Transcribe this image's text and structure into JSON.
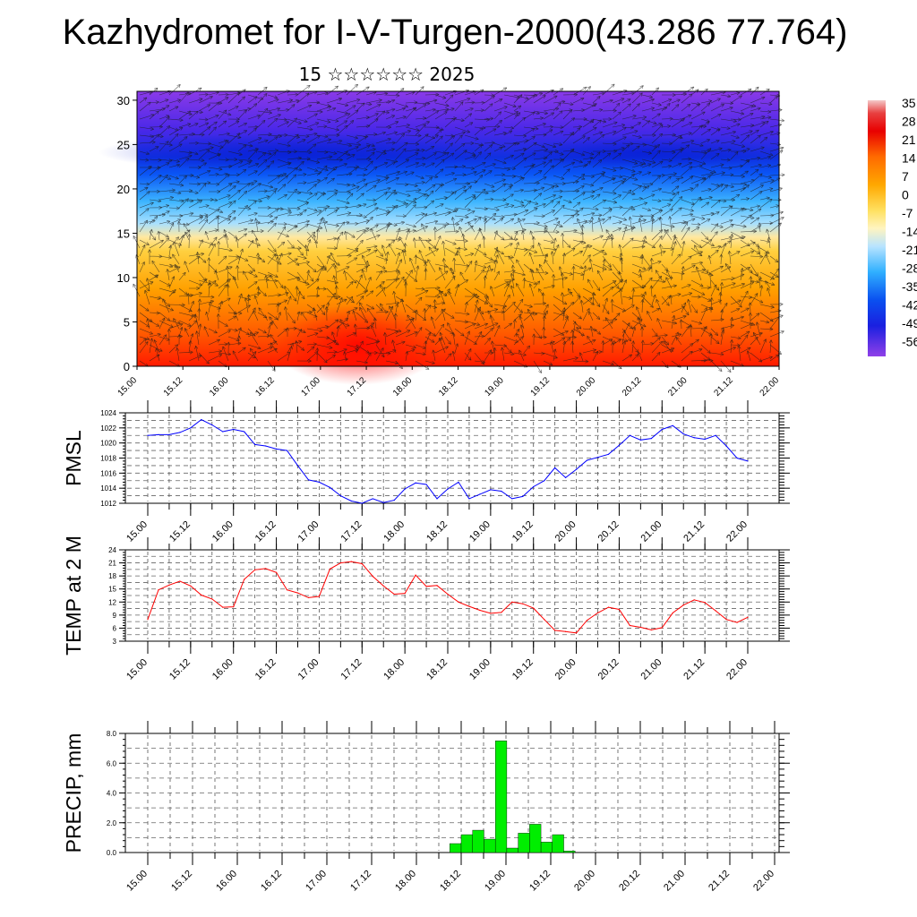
{
  "title": "Kazhydromet for I-V-Turgen-2000(43.286 77.764)",
  "subtitle": "15 ☆☆☆☆☆☆ 2025",
  "time_labels": [
    "15.00",
    "15.12",
    "16.00",
    "16.12",
    "17.00",
    "17.12",
    "18.00",
    "18.12",
    "19.00",
    "19.12",
    "20.00",
    "20.12",
    "21.00",
    "21.12",
    "22.00"
  ],
  "colors": {
    "pmsl": "#0000ff",
    "temp": "#ff0000",
    "precip": "#00ee00"
  },
  "chart_data": [
    {
      "type": "heatmap",
      "name": "cross_section",
      "x": [
        "15.00",
        "15.12",
        "16.00",
        "16.12",
        "17.00",
        "17.12",
        "18.00",
        "18.12",
        "19.00",
        "19.12",
        "20.00",
        "20.12",
        "21.00",
        "21.12",
        "22.00"
      ],
      "y_ticks": [
        "0",
        "5",
        "10",
        "15",
        "20",
        "25",
        "30"
      ],
      "ylim": [
        0,
        31
      ],
      "legend_labels": [
        "35",
        "28",
        "21",
        "14",
        "7",
        "0",
        "-7",
        "-14",
        "-21",
        "-28",
        "-35",
        "-42",
        "-49",
        "-56"
      ],
      "legend_placement": "right",
      "overlay": "wind arrows"
    },
    {
      "type": "line",
      "name": "pmsl",
      "ylabel": "PMSL",
      "ylim": [
        1012,
        1024
      ],
      "y_ticks": [
        "1012",
        "1014",
        "1016",
        "1018",
        "1020",
        "1022",
        "1024"
      ],
      "x_ticks": [
        "15.00",
        "15.12",
        "16.00",
        "16.12",
        "17.00",
        "17.12",
        "18.00",
        "18.12",
        "19.00",
        "19.12",
        "20.00",
        "20.12",
        "21.00",
        "21.12",
        "22.00"
      ],
      "values": [
        1021.0,
        1021.1,
        1021.1,
        1021.4,
        1022.0,
        1023.1,
        1022.4,
        1021.5,
        1021.8,
        1021.5,
        1019.8,
        1019.6,
        1019.2,
        1019.0,
        1017.0,
        1015.1,
        1014.8,
        1014.1,
        1013.0,
        1012.3,
        1012.0,
        1012.6,
        1012.1,
        1012.4,
        1013.9,
        1014.7,
        1014.5,
        1012.6,
        1013.9,
        1014.8,
        1012.6,
        1013.2,
        1013.8,
        1013.6,
        1012.6,
        1012.9,
        1014.2,
        1015.0,
        1016.7,
        1015.4,
        1016.5,
        1017.7,
        1018.1,
        1018.5,
        1019.7,
        1021.0,
        1020.4,
        1020.6,
        1021.8,
        1022.3,
        1021.2,
        1020.7,
        1020.5,
        1021.0,
        1019.6,
        1018.0,
        1017.6
      ],
      "grid": true
    },
    {
      "type": "line",
      "name": "temp",
      "ylabel": "TEMP at 2 M",
      "ylim": [
        3,
        24
      ],
      "y_ticks": [
        "3",
        "6",
        "9",
        "12",
        "15",
        "18",
        "21",
        "24"
      ],
      "x_ticks": [
        "15.00",
        "15.12",
        "16.00",
        "16.12",
        "17.00",
        "17.12",
        "18.00",
        "18.12",
        "19.00",
        "19.12",
        "20.00",
        "20.12",
        "21.00",
        "21.12",
        "22.00"
      ],
      "values": [
        8.0,
        14.8,
        15.9,
        16.8,
        15.7,
        13.6,
        12.7,
        10.8,
        10.9,
        17.2,
        19.4,
        19.7,
        18.8,
        14.8,
        14.1,
        13.0,
        13.3,
        19.6,
        21.0,
        21.3,
        20.8,
        17.9,
        15.7,
        13.8,
        14.0,
        18.2,
        15.6,
        15.8,
        13.8,
        12.0,
        11.0,
        10.1,
        9.4,
        9.6,
        12.0,
        11.6,
        10.6,
        8.0,
        5.5,
        5.2,
        4.9,
        7.8,
        9.5,
        10.8,
        10.3,
        6.6,
        6.2,
        5.6,
        6.1,
        9.5,
        11.3,
        12.5,
        11.9,
        10.0,
        8.0,
        7.3,
        8.5
      ],
      "grid": true
    },
    {
      "type": "bar",
      "name": "precip",
      "ylabel": "PRECIP, mm",
      "ylim": [
        0,
        8
      ],
      "y_ticks": [
        "0.0",
        "2.0",
        "4.0",
        "6.0",
        "8.0"
      ],
      "x_ticks": [
        "15.00",
        "15.12",
        "16.00",
        "16.12",
        "17.00",
        "17.12",
        "18.00",
        "18.12",
        "19.00",
        "19.12",
        "20.00",
        "20.12",
        "21.00",
        "21.12",
        "22.00"
      ],
      "values": [
        0,
        0,
        0,
        0,
        0,
        0,
        0,
        0,
        0,
        0,
        0,
        0,
        0,
        0,
        0,
        0,
        0,
        0,
        0,
        0,
        0,
        0,
        0,
        0,
        0,
        0,
        0,
        0.6,
        1.2,
        1.5,
        0.9,
        7.5,
        0.3,
        1.3,
        1.9,
        0.7,
        1.2,
        0.1,
        0,
        0,
        0,
        0,
        0,
        0,
        0,
        0,
        0,
        0,
        0,
        0,
        0,
        0,
        0,
        0,
        0,
        0
      ],
      "grid": true
    }
  ]
}
